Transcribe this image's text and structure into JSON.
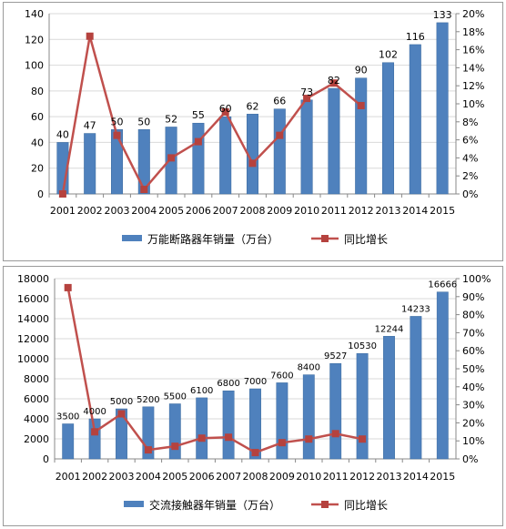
{
  "colors": {
    "bar": "#4F81BD",
    "bar_edge": "#3A6A9E",
    "line": "#C0504D",
    "marker": "#B5423E",
    "grid": "#d9d9d9",
    "axis": "#888888"
  },
  "chart_data": [
    {
      "type": "bar+line",
      "title": "",
      "categories": [
        "2001",
        "2002",
        "2003",
        "2004",
        "2005",
        "2006",
        "2007",
        "2008",
        "2009",
        "2010",
        "2011",
        "2012",
        "2013",
        "2014",
        "2015"
      ],
      "series": [
        {
          "name": "万能断路器年销量（万台）",
          "type": "bar",
          "axis": "left",
          "values": [
            40,
            47,
            50,
            50,
            52,
            55,
            60,
            62,
            66,
            73,
            82,
            90,
            102,
            116,
            133
          ],
          "labels": [
            "40",
            "47",
            "50",
            "50",
            "52",
            "55",
            "60",
            "62",
            "66",
            "73",
            "82",
            "90",
            "102",
            "116",
            "133"
          ]
        },
        {
          "name": "同比增长",
          "type": "line",
          "axis": "right",
          "values": [
            0.0,
            0.175,
            0.065,
            0.005,
            0.04,
            0.058,
            0.091,
            0.034,
            0.065,
            0.106,
            0.123,
            0.098,
            null,
            null,
            null
          ]
        }
      ],
      "ylim_left": [
        0,
        140
      ],
      "yticks_left": [
        "0",
        "20",
        "40",
        "60",
        "80",
        "100",
        "120",
        "140"
      ],
      "ylim_right": [
        0,
        0.2
      ],
      "yticks_right": [
        "0%",
        "2%",
        "4%",
        "6%",
        "8%",
        "10%",
        "12%",
        "14%",
        "16%",
        "18%",
        "20%"
      ],
      "grid": true,
      "legend_position": "bottom"
    },
    {
      "type": "bar+line",
      "title": "",
      "categories": [
        "2001",
        "2002",
        "2003",
        "2004",
        "2005",
        "2006",
        "2007",
        "2008",
        "2009",
        "2010",
        "2011",
        "2012",
        "2013",
        "2014",
        "2015"
      ],
      "series": [
        {
          "name": "交流接触器年销量（万台）",
          "type": "bar",
          "axis": "left",
          "values": [
            3500,
            4000,
            5000,
            5200,
            5500,
            6100,
            6800,
            7000,
            7600,
            8400,
            9527,
            10530,
            12244,
            14233,
            16666
          ],
          "labels": [
            "3500",
            "4000",
            "5000",
            "5200",
            "5500",
            "6100",
            "6800",
            "7000",
            "7600",
            "8400",
            "9527",
            "10530",
            "12244",
            "14233",
            "16666"
          ]
        },
        {
          "name": "同比增长",
          "type": "line",
          "axis": "right",
          "values": [
            0.95,
            0.15,
            0.25,
            0.05,
            0.07,
            0.115,
            0.12,
            0.035,
            0.09,
            0.11,
            0.14,
            0.11,
            null,
            null,
            null
          ]
        }
      ],
      "ylim_left": [
        0,
        18000
      ],
      "yticks_left": [
        "0",
        "2000",
        "4000",
        "6000",
        "8000",
        "10000",
        "12000",
        "14000",
        "16000",
        "18000"
      ],
      "ylim_right": [
        0,
        1.0
      ],
      "yticks_right": [
        "0%",
        "10%",
        "20%",
        "30%",
        "40%",
        "50%",
        "60%",
        "70%",
        "80%",
        "90%",
        "100%"
      ],
      "grid": true,
      "legend_position": "bottom"
    }
  ]
}
